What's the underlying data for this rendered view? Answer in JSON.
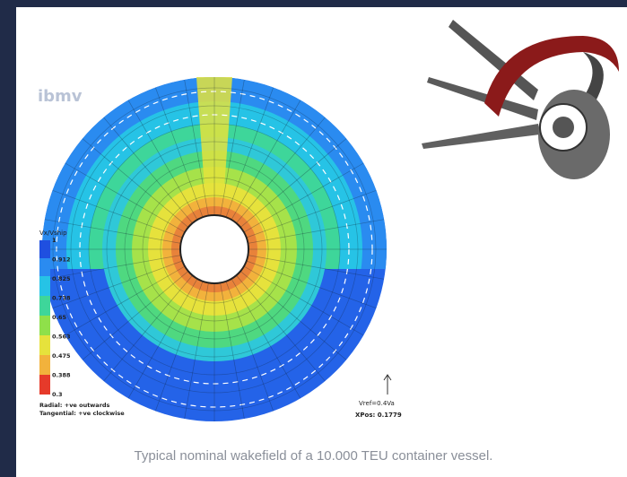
{
  "figure": {
    "logo": "ibmv",
    "legend": {
      "title": "Vx/Vship",
      "labels": [
        "1",
        "0.912",
        "0.825",
        "0.738",
        "0.65",
        "0.563",
        "0.475",
        "0.388",
        "0.3"
      ],
      "notes": [
        "Radial: +ve outwards",
        "Tangential: +ve clockwise"
      ]
    },
    "vref": "Vref=0.4Va",
    "xpos": "XPos: 0.1779"
  },
  "caption": "Typical nominal wakefield of a 10.000 TEU container vessel."
}
